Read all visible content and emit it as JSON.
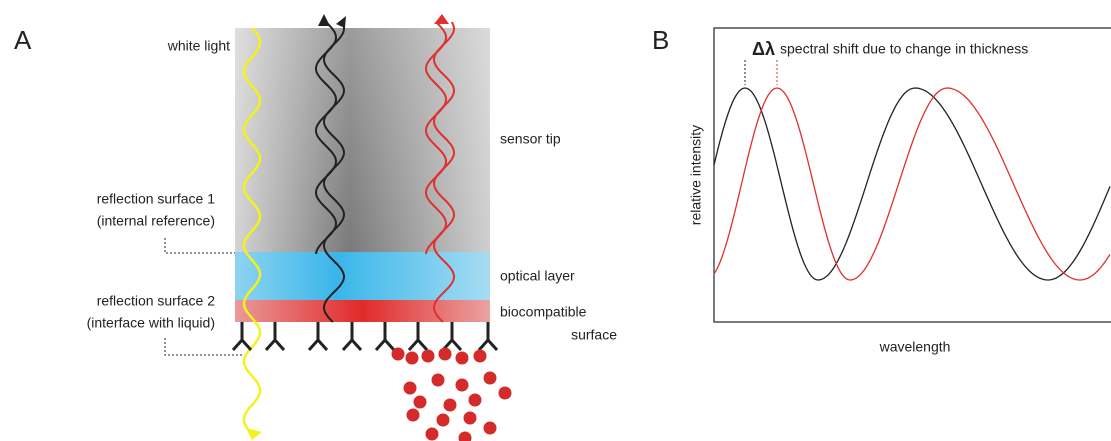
{
  "panel_a": {
    "label": "A",
    "white_light": "white light",
    "sensor_tip": "sensor tip",
    "reflection_surface_1": [
      "reflection surface 1",
      "(internal reference)"
    ],
    "optical_layer": "optical layer",
    "reflection_surface_2": [
      "reflection surface 2",
      "(interface with liquid)"
    ],
    "biocompatible_surface": [
      "biocompatible",
      "surface"
    ]
  },
  "panel_b": {
    "label": "B",
    "delta": "Δλ",
    "annotation": "spectral shift due to change in thickness",
    "y_label": "relative intensity",
    "x_label": "wavelength"
  }
}
